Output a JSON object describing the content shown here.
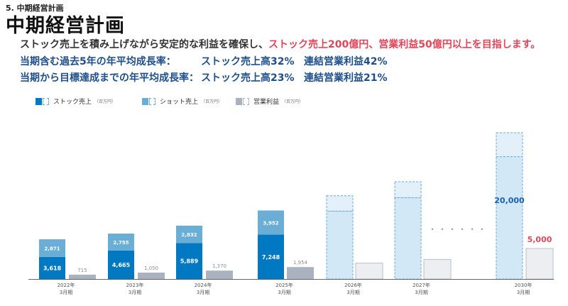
{
  "header": {
    "section": "5. 中期経営計画",
    "title": "中期経営計画",
    "lead_plain": "ストック売上を積み上げながら安定的な利益を確保し、",
    "lead_highlight": "ストック売上200億円、営業利益50億円以上を目指します。"
  },
  "rates": [
    {
      "label": "当期含む過去5年の年平均成長率：",
      "stock": "ストック売上高32%",
      "profit": "連結営業利益42%"
    },
    {
      "label": "当期から目標達成までの年平均成長率：",
      "stock": "ストック売上高23%",
      "profit": "連結営業利益21%"
    }
  ],
  "legend": [
    {
      "label": "ストック売上",
      "unit": "（百万円）",
      "color": "#0079c2"
    },
    {
      "label": "ショット売上",
      "unit": "（百万円）",
      "color": "#6aaed6"
    },
    {
      "label": "営業利益",
      "unit": "（百万円）",
      "color": "#a9b2be"
    }
  ],
  "colors": {
    "stock": "#0079c2",
    "shot": "#6aaed6",
    "profit": "#a9b2be",
    "plan_stock": "#d3e8f6",
    "plan_shot": "#e3f0f9",
    "plan_profit": "#eceef1",
    "plan_border": "#6aa7d4",
    "highlight": "#e0465a"
  },
  "ellipsis": "・・・・・・",
  "chart_data": {
    "type": "bar",
    "stacked": true,
    "categories": [
      "2022年\n3月期",
      "2023年\n3月期",
      "2024年\n3月期",
      "2025年\n3月期",
      "2026年\n3月期",
      "2027年\n3月期",
      "2030年\n3月期"
    ],
    "series": [
      {
        "name": "ストック売上",
        "values": [
          3618,
          4665,
          5889,
          7248,
          11100,
          13300,
          20000
        ],
        "labels": [
          "3,618",
          "4,665",
          "5,889",
          "7,248",
          "",
          "",
          "20,000"
        ]
      },
      {
        "name": "ショット売上",
        "values": [
          2871,
          2755,
          2832,
          3952,
          2500,
          2600,
          3900
        ],
        "labels": [
          "2,871",
          "2,755",
          "2,832",
          "3,952",
          "",
          "",
          ""
        ]
      },
      {
        "name": "営業利益",
        "values": [
          715,
          1050,
          1370,
          1954,
          2600,
          3200,
          5000
        ],
        "labels": [
          "715",
          "1,050",
          "1,370",
          "1,954",
          "",
          "",
          "5,000"
        ]
      }
    ],
    "plan_from_index": 4
  }
}
